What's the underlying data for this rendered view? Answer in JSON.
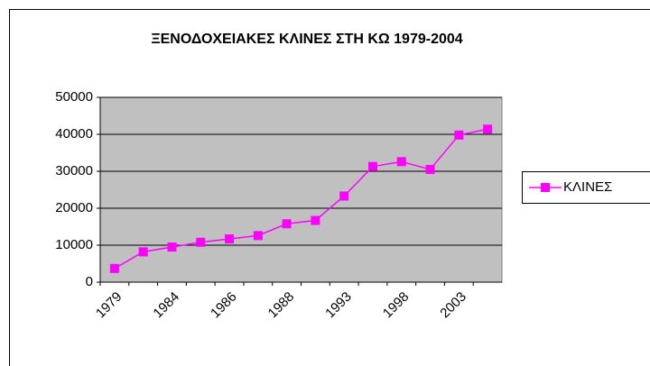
{
  "chart_data": {
    "type": "line",
    "title": "ΞΕΝΟΔΟΧΕΙΑΚΕΣ ΚΛΙΝΕΣ ΣΤΗ ΚΩ 1979-2004",
    "categories": [
      "1979",
      null,
      "1984",
      null,
      "1986",
      null,
      "1988",
      null,
      "1993",
      null,
      "1998",
      null,
      "2003",
      null
    ],
    "series": [
      {
        "name": "ΚΛΙΝΕΣ",
        "color": "#ff00ff",
        "values": [
          3700,
          8200,
          9500,
          10800,
          11700,
          12600,
          15800,
          16700,
          23300,
          31300,
          32600,
          30500,
          39800,
          41400
        ]
      }
    ],
    "ylim": [
      0,
      50000
    ],
    "yticks": [
      0,
      10000,
      20000,
      30000,
      40000,
      50000
    ],
    "grid": true,
    "legend": "right"
  }
}
